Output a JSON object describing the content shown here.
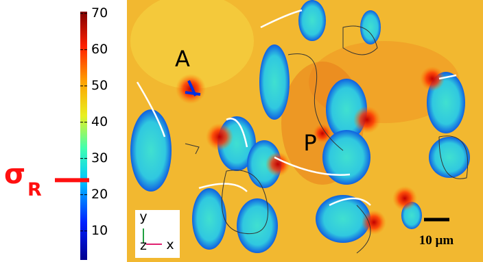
{
  "colorbar": {
    "range": [
      2,
      70.5
    ],
    "ticks": [
      10,
      20,
      30,
      40,
      50,
      60,
      70
    ]
  },
  "marker": {
    "symbol": "σ",
    "subscript": "R",
    "value": 24
  },
  "labels": {
    "a": "A",
    "p": "P"
  },
  "axes_triad": {
    "y": "y",
    "z": "z",
    "x": "x"
  },
  "scale_bar": "10 µm"
}
